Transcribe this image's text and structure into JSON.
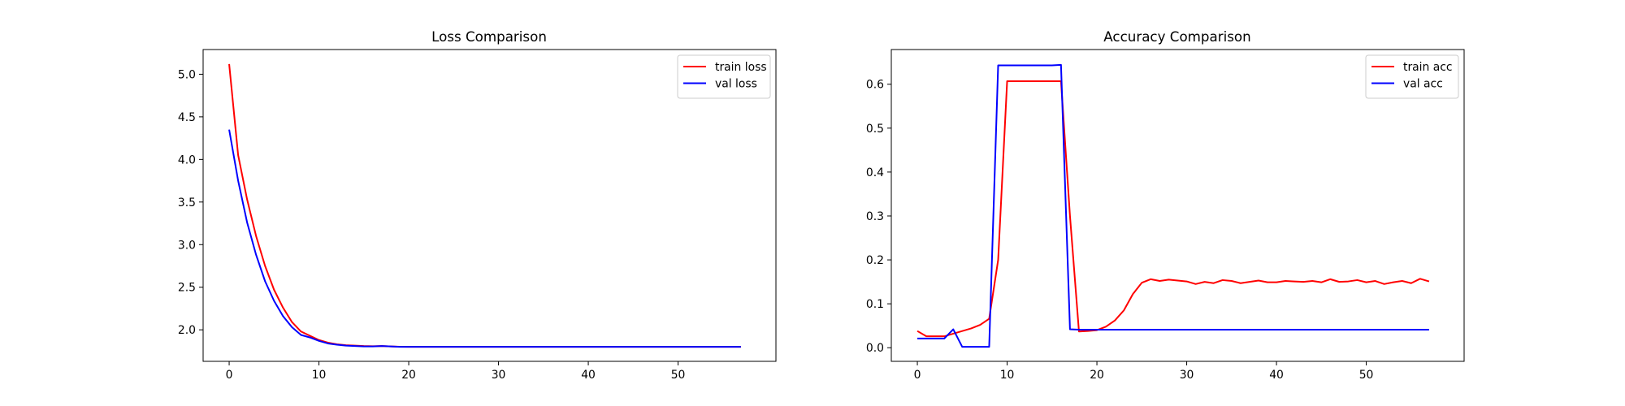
{
  "chart_data": [
    {
      "type": "line",
      "title": "Loss Comparison",
      "xlabel": "",
      "ylabel": "",
      "xlim": [
        -2.9,
        60.9
      ],
      "ylim": [
        1.63,
        5.29
      ],
      "xticks": [
        0,
        10,
        20,
        30,
        40,
        50
      ],
      "yticks": [
        2.0,
        2.5,
        3.0,
        3.5,
        4.0,
        4.5,
        5.0
      ],
      "ytick_labels": [
        "2.0",
        "2.5",
        "3.0",
        "3.5",
        "4.0",
        "4.5",
        "5.0"
      ],
      "legend_position": "top-right",
      "x": [
        0,
        1,
        2,
        3,
        4,
        5,
        6,
        7,
        8,
        9,
        10,
        11,
        12,
        13,
        14,
        15,
        16,
        17,
        18,
        19,
        20,
        21,
        22,
        23,
        24,
        25,
        26,
        27,
        28,
        29,
        30,
        31,
        32,
        33,
        34,
        35,
        36,
        37,
        38,
        39,
        40,
        41,
        42,
        43,
        44,
        45,
        46,
        47,
        48,
        49,
        50,
        51,
        52,
        53,
        54,
        55,
        56,
        57
      ],
      "series": [
        {
          "name": "train loss",
          "color": "#ff0000",
          "values": [
            5.12,
            4.05,
            3.53,
            3.1,
            2.75,
            2.47,
            2.26,
            2.09,
            1.98,
            1.93,
            1.88,
            1.85,
            1.83,
            1.82,
            1.815,
            1.81,
            1.808,
            1.81,
            1.805,
            1.802,
            1.8,
            1.8,
            1.8,
            1.8,
            1.8,
            1.8,
            1.8,
            1.8,
            1.8,
            1.8,
            1.8,
            1.8,
            1.8,
            1.8,
            1.8,
            1.8,
            1.8,
            1.8,
            1.8,
            1.8,
            1.8,
            1.8,
            1.8,
            1.8,
            1.8,
            1.8,
            1.8,
            1.8,
            1.8,
            1.8,
            1.8,
            1.8,
            1.8,
            1.8,
            1.8,
            1.8,
            1.8,
            1.8
          ]
        },
        {
          "name": "val loss",
          "color": "#0000ff",
          "values": [
            4.35,
            3.75,
            3.26,
            2.88,
            2.57,
            2.34,
            2.16,
            2.03,
            1.94,
            1.91,
            1.87,
            1.84,
            1.825,
            1.815,
            1.81,
            1.805,
            1.805,
            1.81,
            1.805,
            1.8,
            1.8,
            1.8,
            1.8,
            1.8,
            1.8,
            1.8,
            1.8,
            1.8,
            1.8,
            1.8,
            1.8,
            1.8,
            1.8,
            1.8,
            1.8,
            1.8,
            1.8,
            1.8,
            1.8,
            1.8,
            1.8,
            1.8,
            1.8,
            1.8,
            1.8,
            1.8,
            1.8,
            1.8,
            1.8,
            1.8,
            1.8,
            1.8,
            1.8,
            1.8,
            1.8,
            1.8,
            1.8,
            1.8
          ]
        }
      ]
    },
    {
      "type": "line",
      "title": "Accuracy Comparison",
      "xlabel": "",
      "ylabel": "",
      "xlim": [
        -2.9,
        60.9
      ],
      "ylim": [
        -0.031,
        0.679
      ],
      "xticks": [
        0,
        10,
        20,
        30,
        40,
        50
      ],
      "yticks": [
        0.0,
        0.1,
        0.2,
        0.3,
        0.4,
        0.5,
        0.6
      ],
      "ytick_labels": [
        "0.0",
        "0.1",
        "0.2",
        "0.3",
        "0.4",
        "0.5",
        "0.6"
      ],
      "legend_position": "top-right",
      "x": [
        0,
        1,
        2,
        3,
        4,
        5,
        6,
        7,
        8,
        9,
        10,
        11,
        12,
        13,
        14,
        15,
        16,
        17,
        18,
        19,
        20,
        21,
        22,
        23,
        24,
        25,
        26,
        27,
        28,
        29,
        30,
        31,
        32,
        33,
        34,
        35,
        36,
        37,
        38,
        39,
        40,
        41,
        42,
        43,
        44,
        45,
        46,
        47,
        48,
        49,
        50,
        51,
        52,
        53,
        54,
        55,
        56,
        57
      ],
      "series": [
        {
          "name": "train acc",
          "color": "#ff0000",
          "values": [
            0.038,
            0.026,
            0.026,
            0.026,
            0.032,
            0.038,
            0.044,
            0.052,
            0.066,
            0.2,
            0.607,
            0.607,
            0.607,
            0.607,
            0.607,
            0.607,
            0.607,
            0.3,
            0.037,
            0.038,
            0.04,
            0.048,
            0.062,
            0.085,
            0.122,
            0.148,
            0.156,
            0.152,
            0.155,
            0.153,
            0.151,
            0.145,
            0.15,
            0.147,
            0.154,
            0.152,
            0.147,
            0.15,
            0.153,
            0.149,
            0.149,
            0.152,
            0.151,
            0.15,
            0.152,
            0.149,
            0.156,
            0.15,
            0.151,
            0.154,
            0.149,
            0.152,
            0.145,
            0.149,
            0.152,
            0.147,
            0.157,
            0.151
          ]
        },
        {
          "name": "val acc",
          "color": "#0000ff",
          "values": [
            0.021,
            0.021,
            0.021,
            0.021,
            0.042,
            0.002,
            0.002,
            0.002,
            0.002,
            0.643,
            0.643,
            0.643,
            0.643,
            0.643,
            0.643,
            0.643,
            0.644,
            0.042,
            0.041,
            0.041,
            0.041,
            0.041,
            0.041,
            0.041,
            0.041,
            0.041,
            0.041,
            0.041,
            0.041,
            0.041,
            0.041,
            0.041,
            0.041,
            0.041,
            0.041,
            0.041,
            0.041,
            0.041,
            0.041,
            0.041,
            0.041,
            0.041,
            0.041,
            0.041,
            0.041,
            0.041,
            0.041,
            0.041,
            0.041,
            0.041,
            0.041,
            0.041,
            0.041,
            0.041,
            0.041,
            0.041,
            0.041,
            0.041
          ]
        }
      ]
    }
  ]
}
